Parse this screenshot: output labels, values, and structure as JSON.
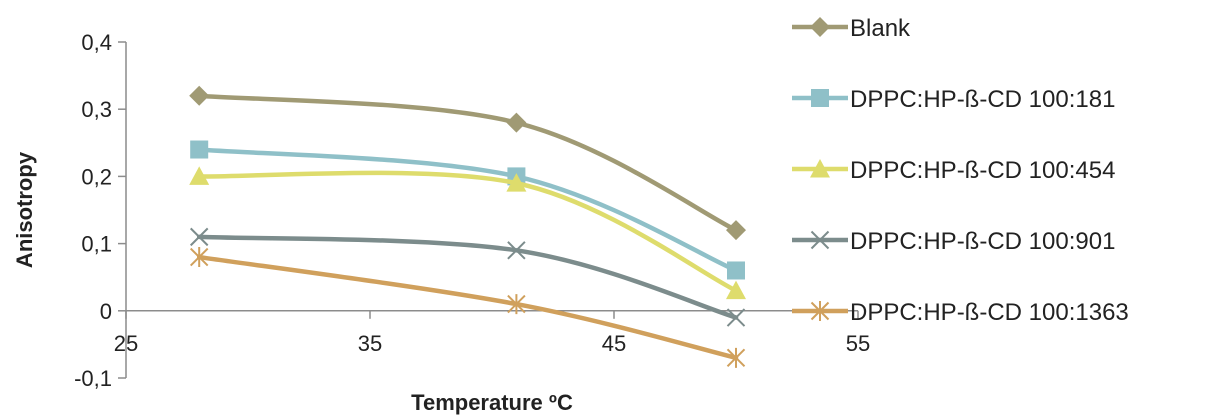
{
  "chart_data": {
    "type": "scatter",
    "xlabel": "Temperature ºC",
    "ylabel": "Anisotropy",
    "xlim": [
      25,
      55
    ],
    "ylim": [
      -0.1,
      0.4
    ],
    "xticks": [
      25,
      35,
      45,
      55
    ],
    "yticks": [
      -0.1,
      0,
      0.1,
      0.2,
      0.3,
      0.4
    ],
    "xtick_labels": [
      "25",
      "35",
      "45",
      "55"
    ],
    "ytick_labels": [
      "-0,1",
      "0",
      "0,1",
      "0,2",
      "0,3",
      "0,4"
    ],
    "legend_position": "right",
    "grid": false,
    "smooth_lines": true,
    "series": [
      {
        "name": "Blank",
        "color": "#a09a74",
        "marker": "diamond",
        "x": [
          28,
          41,
          50
        ],
        "y": [
          0.32,
          0.28,
          0.12
        ]
      },
      {
        "name": "DPPC:HP-ß-CD 100:181",
        "color": "#8fc0c8",
        "marker": "square",
        "x": [
          28,
          41,
          50
        ],
        "y": [
          0.24,
          0.2,
          0.06
        ]
      },
      {
        "name": "DPPC:HP-ß-CD 100:454",
        "color": "#dedc6c",
        "marker": "triangle",
        "x": [
          28,
          41,
          50
        ],
        "y": [
          0.2,
          0.19,
          0.03
        ]
      },
      {
        "name": "DPPC:HP-ß-CD 100:901",
        "color": "#7c8c8c",
        "marker": "x",
        "x": [
          28,
          41,
          50
        ],
        "y": [
          0.11,
          0.09,
          -0.01
        ]
      },
      {
        "name": "DPPC:HP-ß-CD 100:1363",
        "color": "#d0a05c",
        "marker": "star",
        "x": [
          28,
          41,
          50
        ],
        "y": [
          0.08,
          0.01,
          -0.07
        ]
      }
    ]
  }
}
